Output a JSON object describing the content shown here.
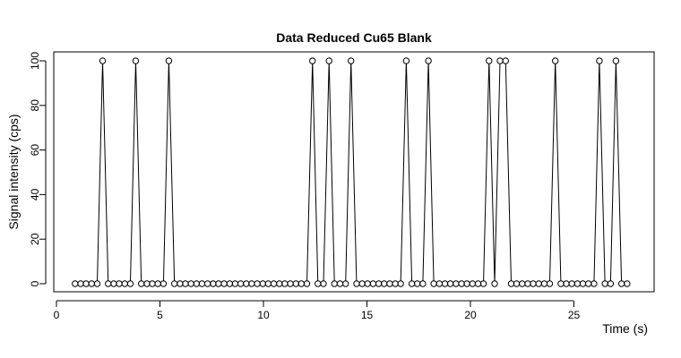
{
  "chart_data": {
    "type": "line",
    "title": "Data Reduced Cu65 Blank",
    "xlabel": "Time (s)",
    "ylabel": "Signal intensity (cps)",
    "xlim": [
      0,
      28
    ],
    "ylim": [
      0,
      100
    ],
    "x_ticks": [
      0,
      5,
      10,
      15,
      20,
      25
    ],
    "y_ticks": [
      0,
      20,
      40,
      60,
      80,
      100
    ],
    "grid": false,
    "legend": "none",
    "x": [
      0.9,
      1.17,
      1.43,
      1.7,
      1.97,
      2.23,
      2.5,
      2.77,
      3.03,
      3.3,
      3.57,
      3.83,
      4.1,
      4.37,
      4.63,
      4.9,
      5.17,
      5.43,
      5.7,
      5.97,
      6.23,
      6.5,
      6.77,
      7.03,
      7.3,
      7.57,
      7.83,
      8.1,
      8.37,
      8.63,
      8.9,
      9.17,
      9.43,
      9.7,
      9.97,
      10.23,
      10.5,
      10.77,
      11.03,
      11.3,
      11.57,
      11.83,
      12.1,
      12.37,
      12.63,
      12.9,
      13.17,
      13.43,
      13.7,
      13.97,
      14.23,
      14.5,
      14.77,
      15.03,
      15.3,
      15.57,
      15.83,
      16.1,
      16.37,
      16.63,
      16.9,
      17.17,
      17.43,
      17.7,
      17.97,
      18.23,
      18.5,
      18.77,
      19.03,
      19.3,
      19.57,
      19.83,
      20.1,
      20.37,
      20.63,
      20.9,
      21.17,
      21.43,
      21.7,
      21.97,
      22.23,
      22.5,
      22.77,
      23.03,
      23.3,
      23.57,
      23.83,
      24.1,
      24.37,
      24.63,
      24.9,
      25.17,
      25.43,
      25.7,
      25.97,
      26.23,
      26.5,
      26.77,
      27.03,
      27.3,
      27.57
    ],
    "y": [
      0,
      0,
      0,
      0,
      0,
      100,
      0,
      0,
      0,
      0,
      0,
      100,
      0,
      0,
      0,
      0,
      0,
      100,
      0,
      0,
      0,
      0,
      0,
      0,
      0,
      0,
      0,
      0,
      0,
      0,
      0,
      0,
      0,
      0,
      0,
      0,
      0,
      0,
      0,
      0,
      0,
      0,
      0,
      100,
      0,
      0,
      100,
      0,
      0,
      0,
      100,
      0,
      0,
      0,
      0,
      0,
      0,
      0,
      0,
      0,
      100,
      0,
      0,
      0,
      100,
      0,
      0,
      0,
      0,
      0,
      0,
      0,
      0,
      0,
      0,
      100,
      0,
      100,
      100,
      0,
      0,
      0,
      0,
      0,
      0,
      0,
      0,
      100,
      0,
      0,
      0,
      0,
      0,
      0,
      0,
      100,
      0,
      0,
      100,
      0,
      0
    ]
  }
}
